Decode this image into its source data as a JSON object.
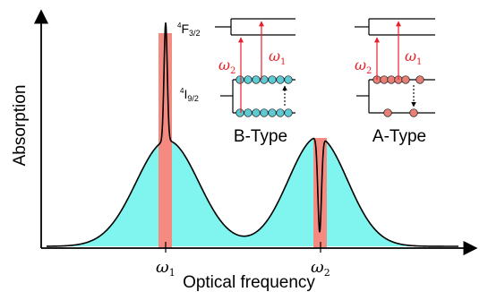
{
  "axes": {
    "x_label": "Optical frequency",
    "y_label": "Absorption",
    "tick_omega1": "ω",
    "tick_omega1_sub": "1",
    "tick_omega2": "ω",
    "tick_omega2_sub": "2"
  },
  "levels": {
    "upper_sup": "4",
    "upper_main": "F",
    "upper_sub": "3/2",
    "lower_sup": "4",
    "lower_main": "I",
    "lower_sub": "9/2"
  },
  "insets": {
    "b_type": {
      "label": "B-Type",
      "omega2": "ω",
      "omega2_sub": "2",
      "omega1": "ω",
      "omega1_sub": "1"
    },
    "a_type": {
      "label": "A-Type",
      "omega2": "ω",
      "omega2_sub": "2",
      "omega1": "ω",
      "omega1_sub": "1"
    }
  },
  "colors": {
    "fill": "#80f4ee",
    "highlight": "#f48a80",
    "arrow_red": "#e8202a",
    "b_atom": "#5ecbd4",
    "a_atom": "#e77f77",
    "line": "#000000"
  }
}
